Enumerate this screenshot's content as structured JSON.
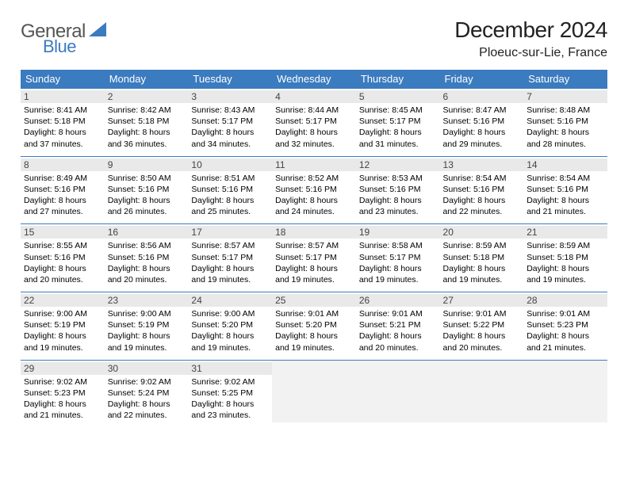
{
  "logo": {
    "general": "General",
    "blue": "Blue"
  },
  "title": "December 2024",
  "location": "Ploeuc-sur-Lie, France",
  "colors": {
    "header_bg": "#3b7bbf",
    "header_text": "#ffffff",
    "daynum_bg": "#e9e9e9",
    "empty_bg": "#f2f2f2",
    "rule": "#3b7bbf",
    "logo_blue": "#3b7bbf"
  },
  "weekdays": [
    "Sunday",
    "Monday",
    "Tuesday",
    "Wednesday",
    "Thursday",
    "Friday",
    "Saturday"
  ],
  "weeks": [
    [
      {
        "n": "1",
        "sr": "Sunrise: 8:41 AM",
        "ss": "Sunset: 5:18 PM",
        "d1": "Daylight: 8 hours",
        "d2": "and 37 minutes."
      },
      {
        "n": "2",
        "sr": "Sunrise: 8:42 AM",
        "ss": "Sunset: 5:18 PM",
        "d1": "Daylight: 8 hours",
        "d2": "and 36 minutes."
      },
      {
        "n": "3",
        "sr": "Sunrise: 8:43 AM",
        "ss": "Sunset: 5:17 PM",
        "d1": "Daylight: 8 hours",
        "d2": "and 34 minutes."
      },
      {
        "n": "4",
        "sr": "Sunrise: 8:44 AM",
        "ss": "Sunset: 5:17 PM",
        "d1": "Daylight: 8 hours",
        "d2": "and 32 minutes."
      },
      {
        "n": "5",
        "sr": "Sunrise: 8:45 AM",
        "ss": "Sunset: 5:17 PM",
        "d1": "Daylight: 8 hours",
        "d2": "and 31 minutes."
      },
      {
        "n": "6",
        "sr": "Sunrise: 8:47 AM",
        "ss": "Sunset: 5:16 PM",
        "d1": "Daylight: 8 hours",
        "d2": "and 29 minutes."
      },
      {
        "n": "7",
        "sr": "Sunrise: 8:48 AM",
        "ss": "Sunset: 5:16 PM",
        "d1": "Daylight: 8 hours",
        "d2": "and 28 minutes."
      }
    ],
    [
      {
        "n": "8",
        "sr": "Sunrise: 8:49 AM",
        "ss": "Sunset: 5:16 PM",
        "d1": "Daylight: 8 hours",
        "d2": "and 27 minutes."
      },
      {
        "n": "9",
        "sr": "Sunrise: 8:50 AM",
        "ss": "Sunset: 5:16 PM",
        "d1": "Daylight: 8 hours",
        "d2": "and 26 minutes."
      },
      {
        "n": "10",
        "sr": "Sunrise: 8:51 AM",
        "ss": "Sunset: 5:16 PM",
        "d1": "Daylight: 8 hours",
        "d2": "and 25 minutes."
      },
      {
        "n": "11",
        "sr": "Sunrise: 8:52 AM",
        "ss": "Sunset: 5:16 PM",
        "d1": "Daylight: 8 hours",
        "d2": "and 24 minutes."
      },
      {
        "n": "12",
        "sr": "Sunrise: 8:53 AM",
        "ss": "Sunset: 5:16 PM",
        "d1": "Daylight: 8 hours",
        "d2": "and 23 minutes."
      },
      {
        "n": "13",
        "sr": "Sunrise: 8:54 AM",
        "ss": "Sunset: 5:16 PM",
        "d1": "Daylight: 8 hours",
        "d2": "and 22 minutes."
      },
      {
        "n": "14",
        "sr": "Sunrise: 8:54 AM",
        "ss": "Sunset: 5:16 PM",
        "d1": "Daylight: 8 hours",
        "d2": "and 21 minutes."
      }
    ],
    [
      {
        "n": "15",
        "sr": "Sunrise: 8:55 AM",
        "ss": "Sunset: 5:16 PM",
        "d1": "Daylight: 8 hours",
        "d2": "and 20 minutes."
      },
      {
        "n": "16",
        "sr": "Sunrise: 8:56 AM",
        "ss": "Sunset: 5:16 PM",
        "d1": "Daylight: 8 hours",
        "d2": "and 20 minutes."
      },
      {
        "n": "17",
        "sr": "Sunrise: 8:57 AM",
        "ss": "Sunset: 5:17 PM",
        "d1": "Daylight: 8 hours",
        "d2": "and 19 minutes."
      },
      {
        "n": "18",
        "sr": "Sunrise: 8:57 AM",
        "ss": "Sunset: 5:17 PM",
        "d1": "Daylight: 8 hours",
        "d2": "and 19 minutes."
      },
      {
        "n": "19",
        "sr": "Sunrise: 8:58 AM",
        "ss": "Sunset: 5:17 PM",
        "d1": "Daylight: 8 hours",
        "d2": "and 19 minutes."
      },
      {
        "n": "20",
        "sr": "Sunrise: 8:59 AM",
        "ss": "Sunset: 5:18 PM",
        "d1": "Daylight: 8 hours",
        "d2": "and 19 minutes."
      },
      {
        "n": "21",
        "sr": "Sunrise: 8:59 AM",
        "ss": "Sunset: 5:18 PM",
        "d1": "Daylight: 8 hours",
        "d2": "and 19 minutes."
      }
    ],
    [
      {
        "n": "22",
        "sr": "Sunrise: 9:00 AM",
        "ss": "Sunset: 5:19 PM",
        "d1": "Daylight: 8 hours",
        "d2": "and 19 minutes."
      },
      {
        "n": "23",
        "sr": "Sunrise: 9:00 AM",
        "ss": "Sunset: 5:19 PM",
        "d1": "Daylight: 8 hours",
        "d2": "and 19 minutes."
      },
      {
        "n": "24",
        "sr": "Sunrise: 9:00 AM",
        "ss": "Sunset: 5:20 PM",
        "d1": "Daylight: 8 hours",
        "d2": "and 19 minutes."
      },
      {
        "n": "25",
        "sr": "Sunrise: 9:01 AM",
        "ss": "Sunset: 5:20 PM",
        "d1": "Daylight: 8 hours",
        "d2": "and 19 minutes."
      },
      {
        "n": "26",
        "sr": "Sunrise: 9:01 AM",
        "ss": "Sunset: 5:21 PM",
        "d1": "Daylight: 8 hours",
        "d2": "and 20 minutes."
      },
      {
        "n": "27",
        "sr": "Sunrise: 9:01 AM",
        "ss": "Sunset: 5:22 PM",
        "d1": "Daylight: 8 hours",
        "d2": "and 20 minutes."
      },
      {
        "n": "28",
        "sr": "Sunrise: 9:01 AM",
        "ss": "Sunset: 5:23 PM",
        "d1": "Daylight: 8 hours",
        "d2": "and 21 minutes."
      }
    ],
    [
      {
        "n": "29",
        "sr": "Sunrise: 9:02 AM",
        "ss": "Sunset: 5:23 PM",
        "d1": "Daylight: 8 hours",
        "d2": "and 21 minutes."
      },
      {
        "n": "30",
        "sr": "Sunrise: 9:02 AM",
        "ss": "Sunset: 5:24 PM",
        "d1": "Daylight: 8 hours",
        "d2": "and 22 minutes."
      },
      {
        "n": "31",
        "sr": "Sunrise: 9:02 AM",
        "ss": "Sunset: 5:25 PM",
        "d1": "Daylight: 8 hours",
        "d2": "and 23 minutes."
      },
      null,
      null,
      null,
      null
    ]
  ]
}
